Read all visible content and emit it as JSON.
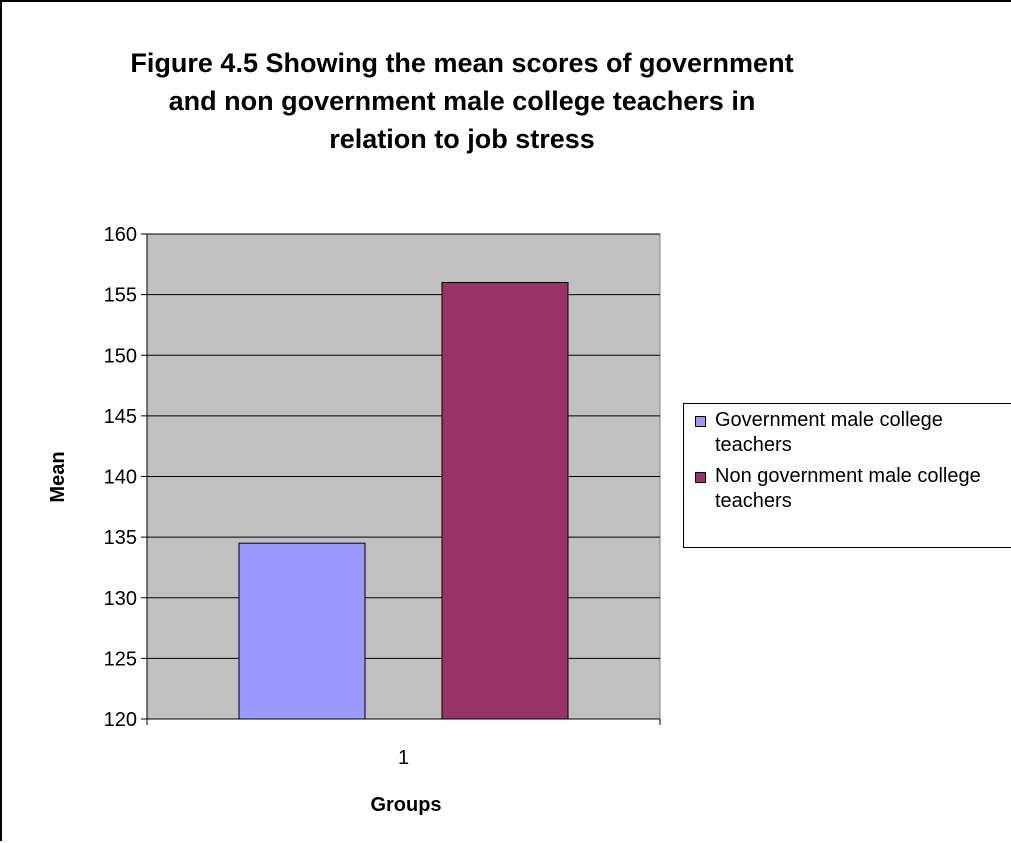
{
  "chart_data": {
    "type": "bar",
    "title": "Figure 4.5 Showing the mean scores of government\nand non government male college teachers in\nrelation to job stress",
    "xlabel": "Groups",
    "ylabel": "Mean",
    "categories": [
      "1"
    ],
    "ylim": [
      120,
      160
    ],
    "yticks": [
      "120",
      "125",
      "130",
      "135",
      "140",
      "145",
      "150",
      "155",
      "160"
    ],
    "grid": true,
    "legend_position": "right",
    "plot_background": "#c0c0c0",
    "series": [
      {
        "name": "Government male college teachers",
        "values": [
          134.5
        ],
        "color": "#9999ff"
      },
      {
        "name": "Non government male college teachers",
        "values": [
          156
        ],
        "color": "#993366"
      }
    ]
  }
}
